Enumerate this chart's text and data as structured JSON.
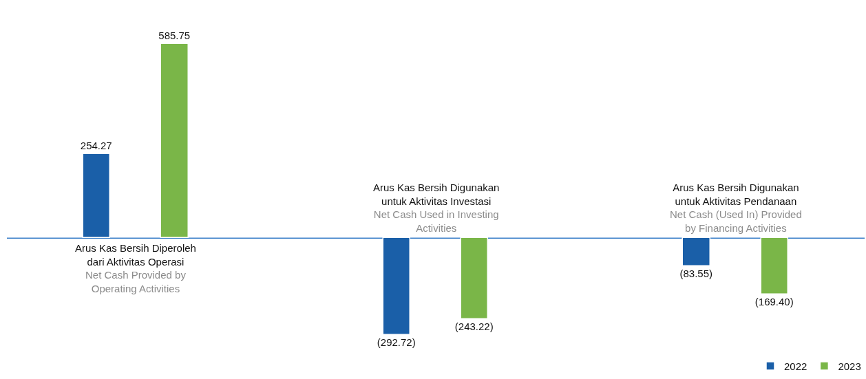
{
  "chart_data": {
    "type": "bar",
    "categories": [
      "Arus Kas Bersih Diperoleh dari Aktivitas Operasi",
      "Arus Kas Bersih Digunakan untuk Aktivitas Investasi",
      "Arus Kas Bersih Digunakan untuk Aktivitas Pendanaan"
    ],
    "series": [
      {
        "name": "2022",
        "color": "#1a5fa8",
        "values": [
          254.27,
          -292.72,
          -83.55
        ],
        "value_labels": [
          "254.27",
          "(292.72)",
          "(83.55)"
        ]
      },
      {
        "name": "2023",
        "color": "#7ab648",
        "values": [
          585.75,
          -243.22,
          -169.4
        ],
        "value_labels": [
          "585.75",
          "(243.22)",
          "(169.40)"
        ]
      }
    ],
    "annotations": [
      "Net Cash Provided by Operating Activities",
      "Net Cash Used in Investing Activities",
      "Net Cash (Used In) Provided by Financing Activities"
    ],
    "ref_lines": [
      {
        "axis": "y",
        "value": 0,
        "color": "#3a7fc8"
      }
    ],
    "grid": false,
    "legend": "bottom right"
  }
}
